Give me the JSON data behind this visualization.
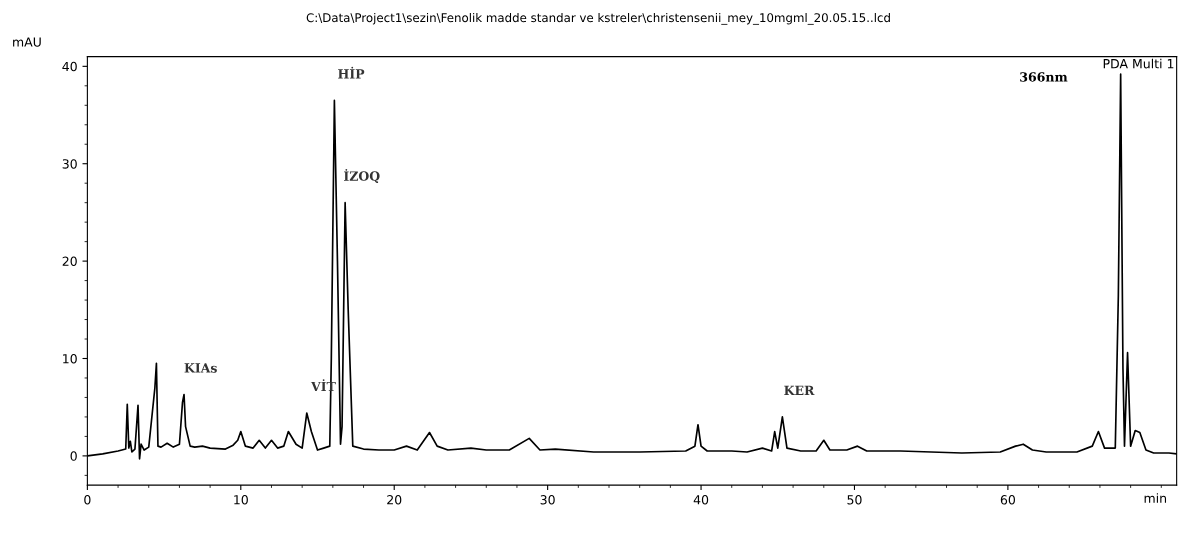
{
  "chart_data": {
    "type": "line",
    "title": "C:\\Data\\Project1\\sezin\\Fenolik madde standar ve kstreler\\christensenii_mey_10mgml_20.05.15..lcd",
    "xlabel": "min",
    "ylabel": "mAU",
    "xlim": [
      0,
      71
    ],
    "ylim": [
      -3,
      41
    ],
    "xticks": [
      0,
      10,
      20,
      30,
      40,
      50,
      60
    ],
    "yticks": [
      0,
      10,
      20,
      30,
      40
    ],
    "grid": false,
    "legend": false,
    "marker": "none",
    "line_style": "solid",
    "annotations": [
      "PDA Multi 1",
      "366nm",
      {
        "text": "KIAs",
        "x": 6.3,
        "y": 6.3
      },
      {
        "text": "VİT",
        "x": 14.3,
        "y": 4.4
      },
      {
        "text": "HİP",
        "x": 16.1,
        "y": 36.5
      },
      {
        "text": "İZOQ",
        "x": 16.8,
        "y": 26.0
      },
      {
        "text": "KER",
        "x": 45.3,
        "y": 4.0
      }
    ],
    "series": [
      {
        "color": "#000000",
        "x": [
          0,
          1.0,
          2.0,
          2.5,
          2.6,
          2.7,
          2.8,
          2.9,
          3.1,
          3.3,
          3.4,
          3.5,
          3.7,
          4.0,
          4.4,
          4.5,
          4.6,
          4.8,
          5.2,
          5.6,
          6.0,
          6.2,
          6.3,
          6.4,
          6.7,
          7.0,
          7.5,
          8.0,
          9.0,
          9.5,
          9.8,
          10.0,
          10.3,
          10.8,
          11.2,
          11.6,
          12.0,
          12.4,
          12.8,
          13.1,
          13.6,
          14.0,
          14.3,
          14.6,
          15.0,
          15.4,
          15.8,
          15.9,
          16.1,
          16.3,
          16.5,
          16.6,
          16.8,
          17.0,
          17.3,
          18.0,
          19.0,
          20.0,
          20.8,
          21.5,
          22.3,
          22.8,
          23.5,
          25.0,
          26.0,
          27.5,
          28.8,
          29.5,
          30.5,
          33.0,
          36.0,
          39.0,
          39.6,
          39.8,
          40.0,
          40.4,
          42.0,
          43.0,
          44.0,
          44.6,
          44.8,
          45.0,
          45.3,
          45.6,
          46.5,
          47.5,
          48.0,
          48.4,
          49.5,
          50.2,
          50.8,
          53.0,
          57.0,
          59.5,
          60.5,
          61.0,
          61.6,
          62.5,
          64.5,
          65.5,
          65.9,
          66.3,
          67.0,
          67.2,
          67.35,
          67.5,
          67.6,
          67.8,
          68.0,
          68.3,
          68.6,
          69.0,
          69.5,
          70.5,
          71.0
        ],
        "values": [
          0,
          0.2,
          0.5,
          0.7,
          5.3,
          0.8,
          1.5,
          0.4,
          0.7,
          5.2,
          -0.3,
          1.2,
          0.6,
          0.9,
          7.0,
          9.5,
          1.0,
          0.9,
          1.3,
          0.9,
          1.2,
          5.5,
          6.3,
          3.0,
          1.0,
          0.9,
          1.0,
          0.8,
          0.7,
          1.1,
          1.6,
          2.5,
          1.0,
          0.8,
          1.6,
          0.8,
          1.6,
          0.8,
          1.0,
          2.5,
          1.2,
          0.8,
          4.4,
          2.5,
          0.6,
          0.8,
          1.0,
          10.0,
          36.5,
          20.0,
          1.2,
          3.0,
          26.0,
          15.0,
          1.0,
          0.7,
          0.6,
          0.6,
          1.0,
          0.6,
          2.4,
          1.0,
          0.6,
          0.8,
          0.6,
          0.6,
          1.8,
          0.6,
          0.7,
          0.4,
          0.4,
          0.5,
          1.0,
          3.2,
          1.0,
          0.5,
          0.5,
          0.4,
          0.8,
          0.5,
          2.5,
          0.8,
          4.0,
          0.8,
          0.5,
          0.5,
          1.6,
          0.6,
          0.6,
          1.0,
          0.5,
          0.5,
          0.3,
          0.4,
          1.0,
          1.2,
          0.6,
          0.4,
          0.4,
          1.0,
          2.5,
          0.8,
          0.8,
          16.5,
          39.2,
          9.0,
          1.0,
          10.6,
          1.0,
          2.6,
          2.4,
          0.6,
          0.3,
          0.3,
          0.2
        ]
      }
    ]
  }
}
